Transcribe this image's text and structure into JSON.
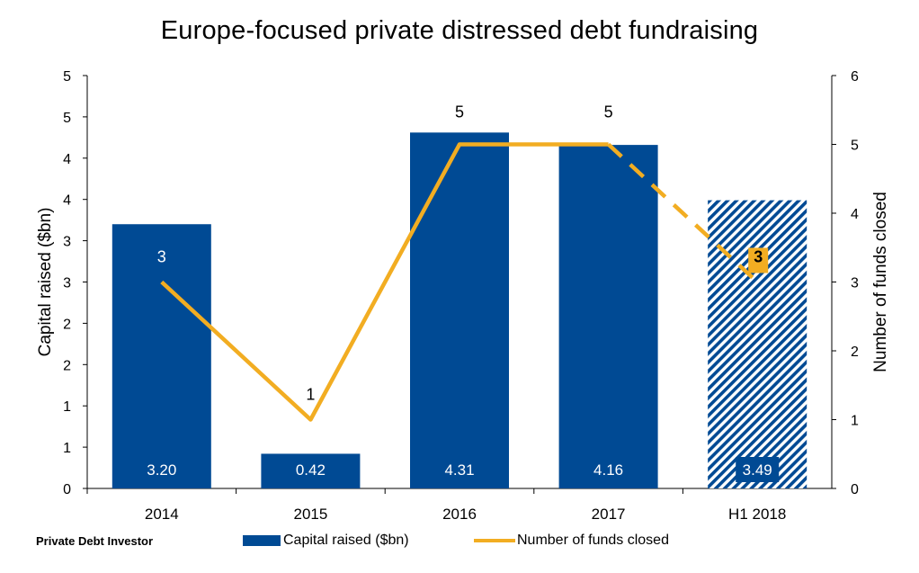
{
  "chart_data": {
    "type": "bar+line",
    "title": "Europe-focused private distressed debt fundraising",
    "categories": [
      "2014",
      "2015",
      "2016",
      "2017",
      "H1 2018"
    ],
    "series": [
      {
        "name": "Capital raised ($bn)",
        "type": "bar",
        "axis": "left",
        "values": [
          3.2,
          0.42,
          4.31,
          4.16,
          3.49
        ],
        "value_labels": [
          "3.20",
          "0.42",
          "4.31",
          "4.16",
          "3.49"
        ],
        "color": "#004a94",
        "hatched_categories": [
          "H1 2018"
        ]
      },
      {
        "name": "Number of funds closed",
        "type": "line",
        "axis": "right",
        "values": [
          3,
          1,
          5,
          5,
          3
        ],
        "value_labels": [
          "3",
          "1",
          "5",
          "5",
          "3"
        ],
        "color": "#f2ad22",
        "dashed_from_category": "2017"
      }
    ],
    "y_left": {
      "label": "Capital raised ($bn)",
      "range": [
        0,
        5
      ],
      "tick_labels": [
        "0",
        "1",
        "1",
        "2",
        "2",
        "3",
        "3",
        "4",
        "4",
        "5",
        "5"
      ]
    },
    "y_right": {
      "label": "Number of funds closed",
      "range": [
        0,
        6
      ],
      "tick_labels": [
        "0",
        "1",
        "2",
        "3",
        "4",
        "5",
        "6"
      ]
    },
    "grid": false,
    "legend_position": "bottom"
  },
  "source": "Private Debt Investor",
  "legend": {
    "bar_label": "Capital raised ($bn)",
    "line_label": "Number of funds closed"
  }
}
